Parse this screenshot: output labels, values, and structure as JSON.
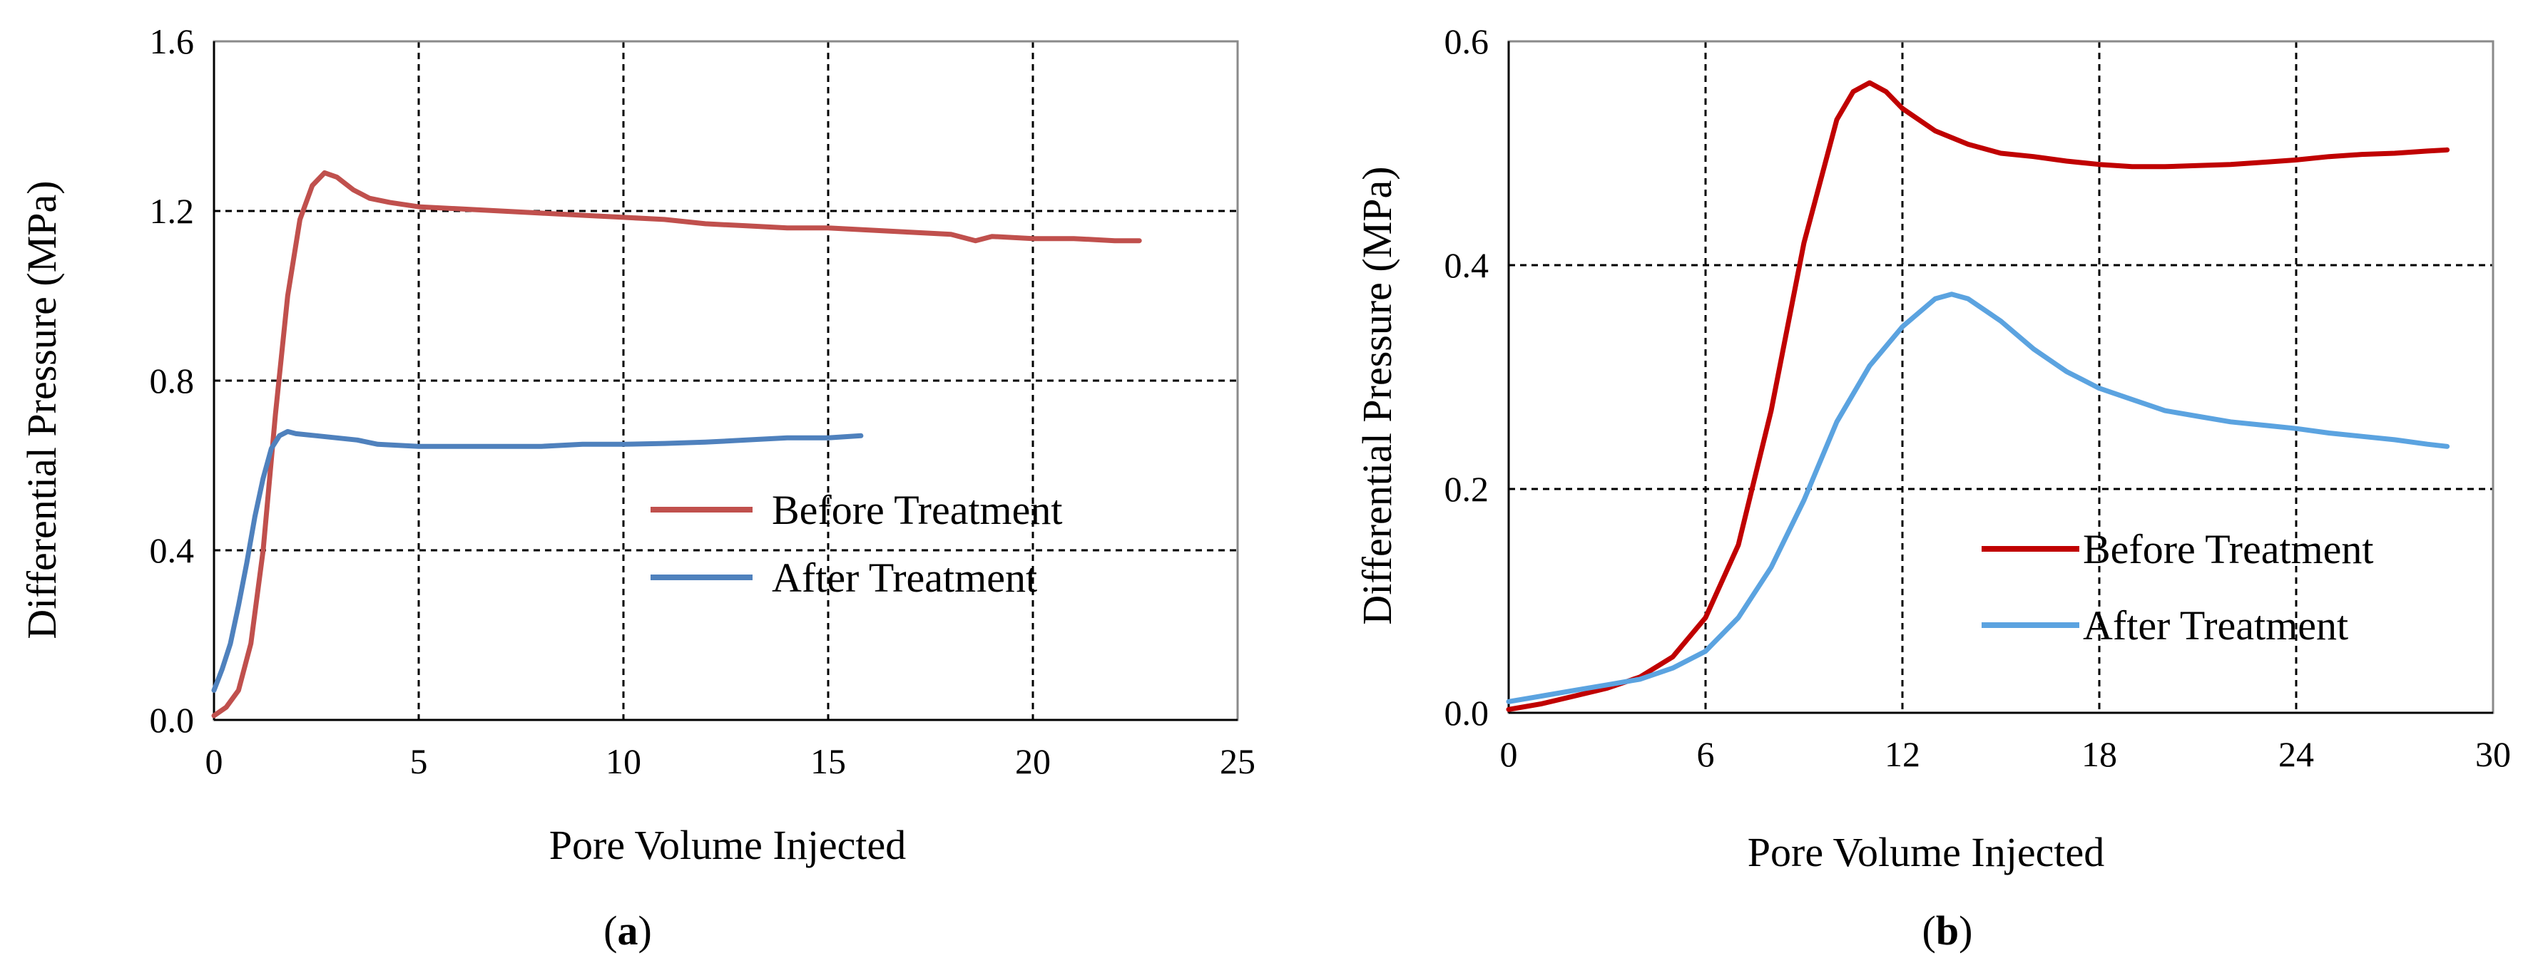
{
  "chart_data": [
    {
      "type": "line",
      "panel_label": "a",
      "xlabel": "Pore Volume Injected",
      "ylabel": "Differential Pressure (MPa)",
      "xlim": [
        0,
        25
      ],
      "ylim": [
        0,
        1.6
      ],
      "xticks": [
        0,
        5,
        10,
        15,
        20,
        25
      ],
      "yticks": [
        0.0,
        0.4,
        0.8,
        1.2,
        1.6
      ],
      "xtick_labels": [
        "0",
        "5",
        "10",
        "15",
        "20",
        "25"
      ],
      "ytick_labels": [
        "0.0",
        "0.4",
        "0.8",
        "1.2",
        "1.6"
      ],
      "grid": true,
      "legend_position": "lower-right",
      "series": [
        {
          "name": "Before Treatment",
          "color": "#c0504d",
          "x": [
            0,
            0.3,
            0.6,
            0.9,
            1.2,
            1.5,
            1.8,
            2.1,
            2.4,
            2.7,
            3.0,
            3.4,
            3.8,
            4.3,
            5,
            6,
            7,
            8,
            9,
            10,
            11,
            12,
            13,
            14,
            15,
            16,
            17,
            18,
            18.6,
            19,
            20,
            21,
            22,
            22.6
          ],
          "y": [
            0.01,
            0.03,
            0.07,
            0.18,
            0.4,
            0.72,
            1.0,
            1.18,
            1.26,
            1.29,
            1.28,
            1.25,
            1.23,
            1.22,
            1.21,
            1.205,
            1.2,
            1.195,
            1.19,
            1.185,
            1.18,
            1.17,
            1.165,
            1.16,
            1.16,
            1.155,
            1.15,
            1.145,
            1.13,
            1.14,
            1.135,
            1.135,
            1.13,
            1.13
          ]
        },
        {
          "name": "After Treatment",
          "color": "#4f81bd",
          "x": [
            0,
            0.2,
            0.4,
            0.6,
            0.8,
            1.0,
            1.2,
            1.4,
            1.6,
            1.8,
            2.0,
            2.5,
            3,
            3.5,
            4,
            5,
            6,
            7,
            8,
            9,
            10,
            11,
            12,
            13,
            14,
            15,
            15.8
          ],
          "y": [
            0.07,
            0.12,
            0.18,
            0.27,
            0.37,
            0.48,
            0.57,
            0.64,
            0.67,
            0.68,
            0.675,
            0.67,
            0.665,
            0.66,
            0.65,
            0.645,
            0.645,
            0.645,
            0.645,
            0.65,
            0.65,
            0.652,
            0.655,
            0.66,
            0.665,
            0.665,
            0.67
          ]
        }
      ]
    },
    {
      "type": "line",
      "panel_label": "b",
      "xlabel": "Pore Volume Injected",
      "ylabel": "Differential Pressure (MPa)",
      "xlim": [
        0,
        30
      ],
      "ylim": [
        0,
        0.6
      ],
      "xticks": [
        0,
        6,
        12,
        18,
        24,
        30
      ],
      "yticks": [
        0.0,
        0.2,
        0.4,
        0.6
      ],
      "xtick_labels": [
        "0",
        "6",
        "12",
        "18",
        "24",
        "30"
      ],
      "ytick_labels": [
        "0.0",
        "0.2",
        "0.4",
        "0.6"
      ],
      "grid": true,
      "legend_position": "lower-right",
      "series": [
        {
          "name": "Before Treatment",
          "color": "#c00000",
          "x": [
            0,
            1,
            2,
            3,
            4,
            5,
            6,
            7,
            8,
            9,
            10,
            10.5,
            11,
            11.5,
            12,
            13,
            14,
            15,
            16,
            17,
            18,
            19,
            20,
            21,
            22,
            23,
            24,
            25,
            26,
            27,
            28,
            28.6
          ],
          "y": [
            0.003,
            0.008,
            0.015,
            0.022,
            0.032,
            0.05,
            0.085,
            0.15,
            0.27,
            0.42,
            0.53,
            0.555,
            0.563,
            0.555,
            0.54,
            0.52,
            0.508,
            0.5,
            0.497,
            0.493,
            0.49,
            0.488,
            0.488,
            0.489,
            0.49,
            0.492,
            0.494,
            0.497,
            0.499,
            0.5,
            0.502,
            0.503
          ]
        },
        {
          "name": "After Treatment",
          "color": "#5ba3e0",
          "x": [
            0,
            1,
            2,
            3,
            4,
            5,
            6,
            7,
            8,
            9,
            10,
            11,
            12,
            13,
            13.5,
            14,
            15,
            16,
            17,
            18,
            19,
            20,
            21,
            22,
            23,
            24,
            25,
            26,
            27,
            28,
            28.6
          ],
          "y": [
            0.01,
            0.015,
            0.02,
            0.025,
            0.03,
            0.04,
            0.055,
            0.085,
            0.13,
            0.19,
            0.26,
            0.31,
            0.345,
            0.37,
            0.374,
            0.37,
            0.35,
            0.325,
            0.305,
            0.29,
            0.28,
            0.27,
            0.265,
            0.26,
            0.257,
            0.254,
            0.25,
            0.247,
            0.244,
            0.24,
            0.238
          ]
        }
      ]
    }
  ]
}
